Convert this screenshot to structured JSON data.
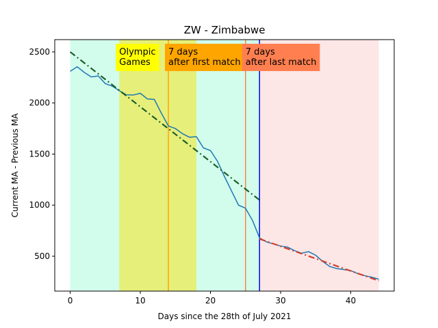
{
  "chart_data": {
    "type": "line",
    "title": "ZW - Zimbabwe",
    "xlabel": "Days since the 28th of July 2021",
    "ylabel": "Current MA - Previous MA",
    "xlim": [
      -2.2,
      46.2
    ],
    "xticks": [
      0,
      10,
      20,
      30,
      40
    ],
    "ylim": [
      159,
      2620
    ],
    "yticks": [
      500,
      1000,
      1500,
      2000,
      2500
    ],
    "grid": false,
    "series": [
      {
        "color": "#1f77b4",
        "style": "solid",
        "x": [
          0,
          1,
          2,
          3,
          4,
          5,
          6,
          7,
          8,
          9,
          10,
          11,
          12,
          13,
          14,
          15,
          16,
          17,
          18,
          19,
          20,
          21,
          22,
          23,
          24,
          25,
          26,
          27,
          28,
          29,
          30,
          31,
          32,
          33,
          34,
          35,
          36,
          37,
          38,
          39,
          40,
          41,
          42,
          43,
          44
        ],
        "values": [
          2310,
          2355,
          2300,
          2255,
          2265,
          2190,
          2165,
          2120,
          2080,
          2078,
          2095,
          2040,
          2035,
          1900,
          1775,
          1750,
          1700,
          1665,
          1670,
          1560,
          1535,
          1430,
          1280,
          1140,
          1000,
          970,
          850,
          680,
          640,
          620,
          600,
          590,
          555,
          530,
          545,
          510,
          450,
          400,
          380,
          370,
          360,
          330,
          310,
          295,
          275
        ]
      },
      {
        "color": "#1a5e2a",
        "style": "dashdot",
        "x": [
          0,
          27
        ],
        "values": [
          2500,
          1050
        ]
      },
      {
        "color": "#d0402a",
        "style": "dashdot",
        "x": [
          27,
          44
        ],
        "values": [
          670,
          260
        ]
      }
    ],
    "spans": [
      {
        "start": 0,
        "end": 27,
        "color": "#d2fdec"
      },
      {
        "start": 7,
        "end": 18,
        "color": "#e6ef7a"
      },
      {
        "start": 27,
        "end": 44,
        "color": "#fde6e6"
      }
    ],
    "vlines": [
      {
        "x": 14,
        "color": "#ffa500"
      },
      {
        "x": 25,
        "color": "#ff7f50"
      },
      {
        "x": 27,
        "color": "#0000ff"
      }
    ],
    "annotations": [
      {
        "x": 7,
        "lines": [
          "Olympic",
          "Games"
        ],
        "color": "#ffff00"
      },
      {
        "x": 14,
        "lines": [
          "7 days",
          "after first match"
        ],
        "color": "#ffa500"
      },
      {
        "x": 25,
        "lines": [
          "7 days",
          "after last match"
        ],
        "color": "#ff7f50"
      }
    ]
  }
}
